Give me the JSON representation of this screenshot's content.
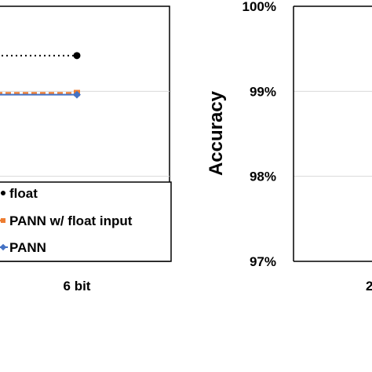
{
  "chart_data": [
    {
      "type": "line",
      "x": [
        "6 bit"
      ],
      "series": [
        {
          "name": "float",
          "values": [
            99.42
          ],
          "color": "#000000",
          "style": "dotted",
          "marker": "circle"
        },
        {
          "name": "PANN w/ float input",
          "values": [
            98.98
          ],
          "color": "#ed7d31",
          "style": "dashed",
          "marker": "square"
        },
        {
          "name": "PANN",
          "values": [
            98.96
          ],
          "color": "#4472c4",
          "style": "solid",
          "marker": "diamond"
        }
      ],
      "ylim": [
        97,
        100
      ],
      "grid": true,
      "legend_position": "bottom-right"
    },
    {
      "type": "line",
      "x": [
        "2"
      ],
      "xticks": [
        "2"
      ],
      "yticks": [
        "97%",
        "98%",
        "99%",
        "100%"
      ],
      "ylabel": "Accuracy",
      "ylim": [
        97,
        100
      ],
      "grid": true
    }
  ]
}
